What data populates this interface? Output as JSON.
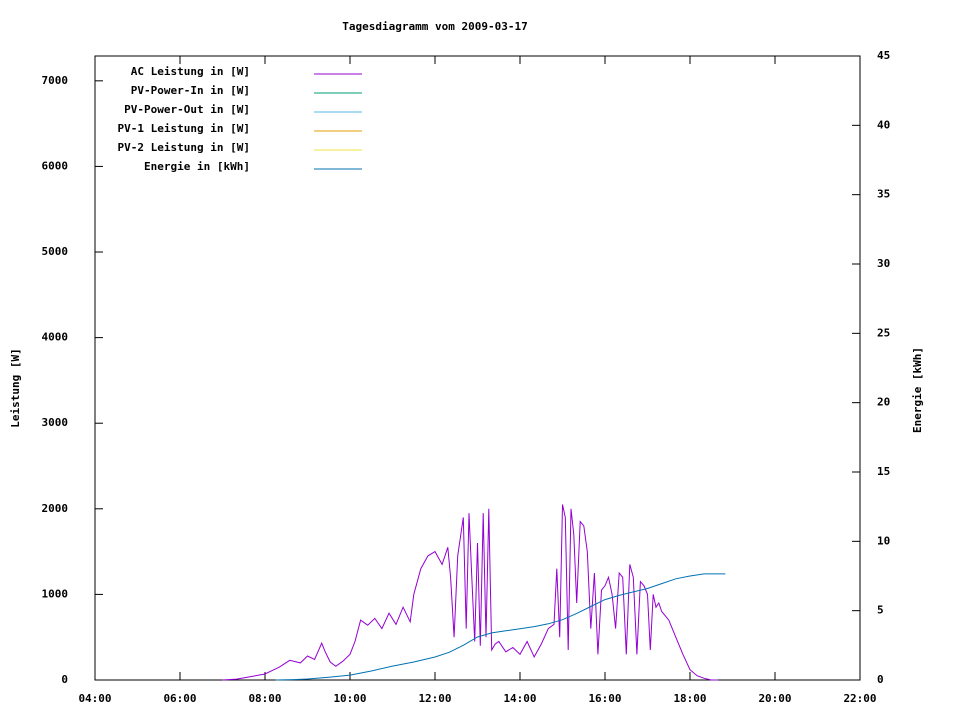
{
  "chart_data": {
    "type": "line",
    "title": "Tagesdiagramm vom 2009-03-17",
    "y_label": "Leistung [W]",
    "y2_label": "Energie [kWh]",
    "xlim": [
      "04:00",
      "22:00"
    ],
    "xticks": [
      "04:00",
      "06:00",
      "08:00",
      "10:00",
      "12:00",
      "14:00",
      "16:00",
      "18:00",
      "20:00",
      "22:00"
    ],
    "ylim": [
      0,
      7290
    ],
    "yticks": [
      0,
      1000,
      2000,
      3000,
      4000,
      5000,
      6000,
      7000
    ],
    "y2lim": [
      0,
      45
    ],
    "y2ticks": [
      0,
      5,
      10,
      15,
      20,
      25,
      30,
      35,
      40,
      45
    ],
    "legend": "top-left",
    "series": [
      {
        "name": "AC Leistung in [W]",
        "color": "#9400d3",
        "x": [
          "07:00",
          "07:20",
          "07:40",
          "08:00",
          "08:10",
          "08:20",
          "08:35",
          "08:50",
          "09:00",
          "09:10",
          "09:20",
          "09:25",
          "09:32",
          "09:40",
          "09:50",
          "10:00",
          "10:07",
          "10:15",
          "10:25",
          "10:35",
          "10:45",
          "10:55",
          "11:05",
          "11:15",
          "11:25",
          "11:30",
          "11:40",
          "11:50",
          "12:00",
          "12:10",
          "12:18",
          "12:22",
          "12:27",
          "12:32",
          "12:40",
          "12:44",
          "12:48",
          "12:52",
          "12:56",
          "13:00",
          "13:04",
          "13:08",
          "13:12",
          "13:16",
          "13:20",
          "13:25",
          "13:30",
          "13:40",
          "13:50",
          "14:00",
          "14:10",
          "14:20",
          "14:30",
          "14:40",
          "14:48",
          "14:52",
          "14:56",
          "15:00",
          "15:04",
          "15:08",
          "15:12",
          "15:16",
          "15:20",
          "15:25",
          "15:30",
          "15:35",
          "15:40",
          "15:45",
          "15:50",
          "15:55",
          "16:00",
          "16:05",
          "16:10",
          "16:15",
          "16:20",
          "16:25",
          "16:30",
          "16:35",
          "16:40",
          "16:45",
          "16:50",
          "16:55",
          "17:00",
          "17:04",
          "17:08",
          "17:12",
          "17:16",
          "17:20",
          "17:30",
          "17:40",
          "17:50",
          "18:00",
          "18:10",
          "18:20",
          "18:30",
          "18:40"
        ],
        "values": [
          0,
          10,
          40,
          70,
          110,
          150,
          230,
          200,
          280,
          240,
          430,
          330,
          210,
          160,
          220,
          300,
          450,
          700,
          640,
          720,
          600,
          780,
          650,
          850,
          680,
          1000,
          1300,
          1450,
          1500,
          1350,
          1550,
          1200,
          500,
          1450,
          1900,
          600,
          1950,
          1200,
          450,
          1600,
          400,
          1950,
          500,
          2000,
          350,
          420,
          450,
          330,
          380,
          300,
          450,
          270,
          420,
          600,
          650,
          1300,
          500,
          2050,
          1900,
          350,
          2000,
          1700,
          900,
          1850,
          1800,
          1500,
          600,
          1250,
          300,
          1050,
          1100,
          1200,
          1000,
          600,
          1250,
          1200,
          300,
          1350,
          1200,
          300,
          1150,
          1100,
          1000,
          350,
          1000,
          850,
          900,
          800,
          700,
          500,
          300,
          120,
          50,
          20,
          0,
          0
        ]
      },
      {
        "name": "PV-Power-In in [W]",
        "color": "#009e73",
        "x": [],
        "values": []
      },
      {
        "name": "PV-Power-Out in [W]",
        "color": "#56b4e9",
        "x": [],
        "values": []
      },
      {
        "name": "PV-1 Leistung in [W]",
        "color": "#e69f00",
        "x": [],
        "values": []
      },
      {
        "name": "PV-2 Leistung in [W]",
        "color": "#f0e442",
        "x": [],
        "values": []
      },
      {
        "name": "Energie in [kWh]",
        "color": "#0072b2",
        "axis": "y2",
        "x": [
          "08:15",
          "08:40",
          "09:00",
          "09:30",
          "10:00",
          "10:30",
          "11:00",
          "11:30",
          "12:00",
          "12:20",
          "12:40",
          "13:00",
          "13:20",
          "13:40",
          "14:00",
          "14:20",
          "14:40",
          "15:00",
          "15:20",
          "15:40",
          "16:00",
          "16:20",
          "16:40",
          "17:00",
          "17:20",
          "17:40",
          "18:00",
          "18:20",
          "18:50"
        ],
        "values": [
          0,
          0.03,
          0.07,
          0.2,
          0.35,
          0.65,
          1.0,
          1.3,
          1.66,
          2.0,
          2.5,
          3.1,
          3.4,
          3.55,
          3.7,
          3.85,
          4.05,
          4.35,
          4.8,
          5.3,
          5.8,
          6.1,
          6.35,
          6.6,
          6.95,
          7.3,
          7.5,
          7.65,
          7.65
        ]
      }
    ]
  }
}
